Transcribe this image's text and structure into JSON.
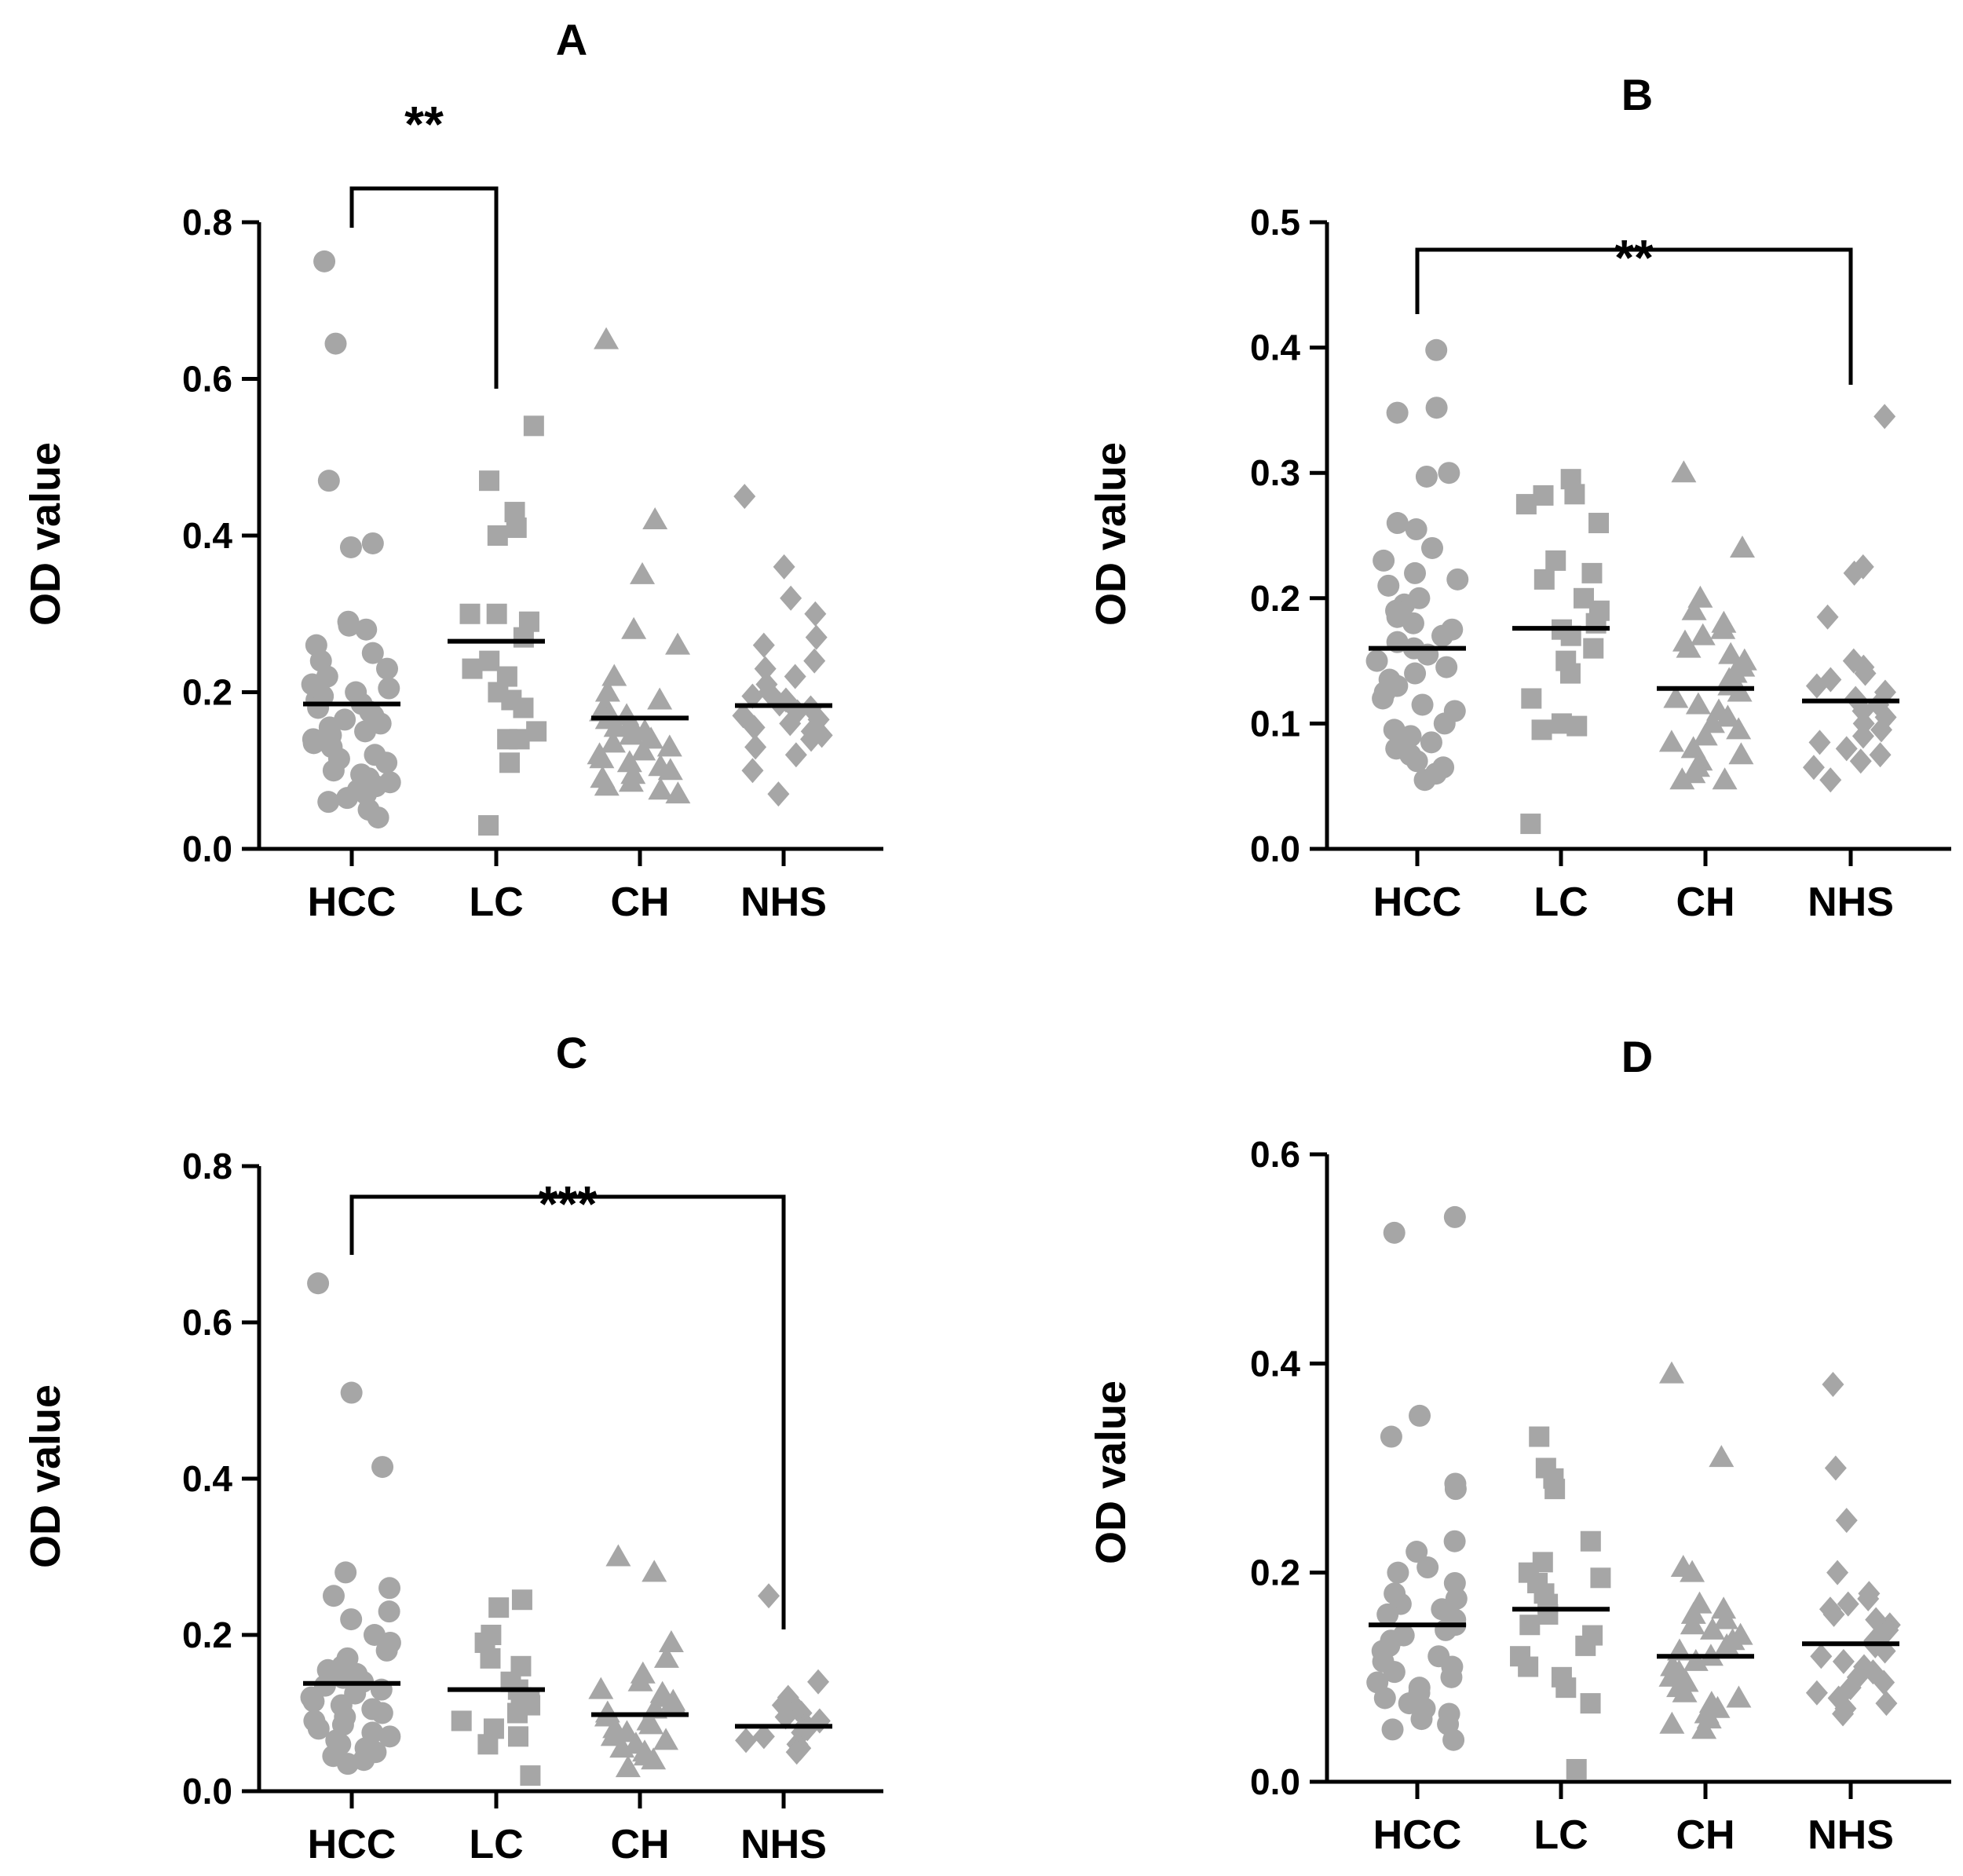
{
  "colors": {
    "points": "#a6a6a6",
    "axis": "#000000",
    "mean": "#000000"
  },
  "chart_data": [
    {
      "id": "A",
      "type": "scatter",
      "subtype": "dot-plot-with-mean",
      "title": "A",
      "ylabel": "OD value",
      "categories": [
        "HCC",
        "LC",
        "CH",
        "NHS"
      ],
      "ylim": [
        0,
        0.8
      ],
      "yticks": [
        0.0,
        0.2,
        0.4,
        0.6,
        0.8
      ],
      "ytick_labels": [
        "0.0",
        "0.2",
        "0.4",
        "0.6",
        "0.8"
      ],
      "series": [
        {
          "name": "HCC",
          "marker": "circle",
          "mean": 0.185,
          "values": [
            0.75,
            0.645,
            0.47,
            0.39,
            0.385,
            0.29,
            0.285,
            0.28,
            0.26,
            0.25,
            0.24,
            0.23,
            0.22,
            0.21,
            0.205,
            0.2,
            0.195,
            0.19,
            0.185,
            0.18,
            0.175,
            0.17,
            0.165,
            0.16,
            0.155,
            0.15,
            0.145,
            0.14,
            0.135,
            0.13,
            0.12,
            0.115,
            0.11,
            0.1,
            0.095,
            0.09,
            0.085,
            0.08,
            0.075,
            0.07,
            0.065,
            0.06,
            0.05,
            0.04
          ]
        },
        {
          "name": "LC",
          "marker": "square",
          "mean": 0.265,
          "values": [
            0.54,
            0.47,
            0.43,
            0.41,
            0.4,
            0.3,
            0.3,
            0.29,
            0.27,
            0.24,
            0.23,
            0.22,
            0.2,
            0.19,
            0.18,
            0.15,
            0.14,
            0.14,
            0.11,
            0.03
          ]
        },
        {
          "name": "CH",
          "marker": "triangle",
          "mean": 0.167,
          "values": [
            0.65,
            0.42,
            0.35,
            0.28,
            0.26,
            0.22,
            0.2,
            0.19,
            0.18,
            0.175,
            0.17,
            0.165,
            0.16,
            0.155,
            0.15,
            0.145,
            0.14,
            0.135,
            0.13,
            0.125,
            0.12,
            0.115,
            0.11,
            0.105,
            0.1,
            0.095,
            0.09,
            0.085,
            0.08,
            0.075,
            0.07
          ]
        },
        {
          "name": "NHS",
          "marker": "diamond",
          "mean": 0.183,
          "values": [
            0.45,
            0.36,
            0.32,
            0.3,
            0.27,
            0.26,
            0.24,
            0.23,
            0.22,
            0.21,
            0.2,
            0.195,
            0.19,
            0.185,
            0.18,
            0.175,
            0.17,
            0.165,
            0.16,
            0.155,
            0.15,
            0.145,
            0.14,
            0.13,
            0.12,
            0.1,
            0.07
          ]
        }
      ],
      "annotations": [
        {
          "from": "HCC",
          "to": "LC",
          "text": "**"
        }
      ]
    },
    {
      "id": "B",
      "type": "scatter",
      "subtype": "dot-plot-with-mean",
      "title": "B",
      "ylabel": "OD value",
      "categories": [
        "HCC",
        "LC",
        "CH",
        "NHS"
      ],
      "ylim": [
        0,
        0.5
      ],
      "yticks": [
        0.0,
        0.1,
        0.2,
        0.3,
        0.4,
        0.5
      ],
      "ytick_labels": [
        "0.0",
        "0.1",
        "0.2",
        "0.3",
        "0.4",
        "0.5"
      ],
      "series": [
        {
          "name": "HCC",
          "marker": "circle",
          "mean": 0.16,
          "values": [
            0.398,
            0.352,
            0.348,
            0.3,
            0.297,
            0.26,
            0.255,
            0.24,
            0.23,
            0.22,
            0.215,
            0.21,
            0.2,
            0.195,
            0.19,
            0.185,
            0.18,
            0.175,
            0.17,
            0.165,
            0.16,
            0.155,
            0.15,
            0.145,
            0.14,
            0.135,
            0.13,
            0.125,
            0.12,
            0.115,
            0.11,
            0.1,
            0.095,
            0.09,
            0.085,
            0.08,
            0.075,
            0.07,
            0.065,
            0.06,
            0.055
          ]
        },
        {
          "name": "LC",
          "marker": "square",
          "mean": 0.176,
          "values": [
            0.295,
            0.283,
            0.282,
            0.275,
            0.26,
            0.23,
            0.22,
            0.215,
            0.2,
            0.19,
            0.18,
            0.175,
            0.17,
            0.16,
            0.15,
            0.14,
            0.12,
            0.1,
            0.098,
            0.095,
            0.02
          ]
        },
        {
          "name": "CH",
          "marker": "triangle",
          "mean": 0.128,
          "values": [
            0.3,
            0.24,
            0.2,
            0.19,
            0.18,
            0.175,
            0.17,
            0.165,
            0.16,
            0.155,
            0.15,
            0.145,
            0.14,
            0.135,
            0.13,
            0.125,
            0.12,
            0.115,
            0.11,
            0.105,
            0.1,
            0.095,
            0.09,
            0.085,
            0.08,
            0.075,
            0.07,
            0.065,
            0.06,
            0.055,
            0.055
          ]
        },
        {
          "name": "NHS",
          "marker": "diamond",
          "mean": 0.118,
          "values": [
            0.345,
            0.225,
            0.22,
            0.185,
            0.15,
            0.145,
            0.14,
            0.135,
            0.13,
            0.125,
            0.12,
            0.115,
            0.11,
            0.105,
            0.1,
            0.095,
            0.09,
            0.085,
            0.08,
            0.075,
            0.07,
            0.065,
            0.055
          ]
        }
      ],
      "annotations": [
        {
          "from": "HCC",
          "to": "NHS",
          "text": "**"
        }
      ]
    },
    {
      "id": "C",
      "type": "scatter",
      "subtype": "dot-plot-with-mean",
      "title": "C",
      "ylabel": "OD value",
      "categories": [
        "HCC",
        "LC",
        "CH",
        "NHS"
      ],
      "ylim": [
        0,
        0.8
      ],
      "yticks": [
        0.0,
        0.2,
        0.4,
        0.6,
        0.8
      ],
      "ytick_labels": [
        "0.0",
        "0.2",
        "0.4",
        "0.6",
        "0.8"
      ],
      "series": [
        {
          "name": "HCC",
          "marker": "circle",
          "mean": 0.138,
          "values": [
            0.65,
            0.51,
            0.415,
            0.28,
            0.26,
            0.25,
            0.23,
            0.22,
            0.2,
            0.19,
            0.18,
            0.17,
            0.16,
            0.155,
            0.15,
            0.145,
            0.14,
            0.135,
            0.13,
            0.125,
            0.12,
            0.115,
            0.11,
            0.105,
            0.1,
            0.095,
            0.09,
            0.085,
            0.08,
            0.075,
            0.07,
            0.065,
            0.06,
            0.055,
            0.05,
            0.045,
            0.04,
            0.035
          ]
        },
        {
          "name": "LC",
          "marker": "square",
          "mean": 0.13,
          "values": [
            0.245,
            0.235,
            0.2,
            0.19,
            0.17,
            0.16,
            0.14,
            0.13,
            0.12,
            0.115,
            0.11,
            0.1,
            0.09,
            0.08,
            0.07,
            0.06,
            0.02
          ]
        },
        {
          "name": "CH",
          "marker": "triangle",
          "mean": 0.098,
          "values": [
            0.3,
            0.28,
            0.19,
            0.17,
            0.15,
            0.14,
            0.13,
            0.125,
            0.12,
            0.115,
            0.11,
            0.105,
            0.1,
            0.095,
            0.09,
            0.085,
            0.08,
            0.075,
            0.07,
            0.065,
            0.06,
            0.055,
            0.05,
            0.045,
            0.04,
            0.03
          ]
        },
        {
          "name": "NHS",
          "marker": "diamond",
          "mean": 0.083,
          "values": [
            0.25,
            0.14,
            0.12,
            0.11,
            0.105,
            0.1,
            0.095,
            0.09,
            0.085,
            0.08,
            0.075,
            0.07,
            0.065,
            0.06,
            0.055,
            0.05
          ]
        }
      ],
      "annotations": [
        {
          "from": "HCC",
          "to": "NHS",
          "text": "***"
        }
      ]
    },
    {
      "id": "D",
      "type": "scatter",
      "subtype": "dot-plot-with-mean",
      "title": "D",
      "ylabel": "OD value",
      "categories": [
        "HCC",
        "LC",
        "CH",
        "NHS"
      ],
      "ylim": [
        0,
        0.6
      ],
      "yticks": [
        0.0,
        0.2,
        0.4,
        0.6
      ],
      "ytick_labels": [
        "0.0",
        "0.2",
        "0.4",
        "0.6"
      ],
      "series": [
        {
          "name": "HCC",
          "marker": "circle",
          "mean": 0.15,
          "values": [
            0.54,
            0.525,
            0.35,
            0.33,
            0.285,
            0.28,
            0.23,
            0.22,
            0.205,
            0.2,
            0.19,
            0.18,
            0.175,
            0.17,
            0.165,
            0.16,
            0.155,
            0.15,
            0.145,
            0.14,
            0.135,
            0.13,
            0.125,
            0.12,
            0.115,
            0.11,
            0.105,
            0.1,
            0.095,
            0.09,
            0.085,
            0.08,
            0.075,
            0.07,
            0.065,
            0.06,
            0.055,
            0.05,
            0.04
          ]
        },
        {
          "name": "LC",
          "marker": "square",
          "mean": 0.165,
          "values": [
            0.33,
            0.3,
            0.29,
            0.28,
            0.23,
            0.21,
            0.2,
            0.195,
            0.19,
            0.18,
            0.17,
            0.16,
            0.15,
            0.14,
            0.13,
            0.12,
            0.11,
            0.1,
            0.09,
            0.075,
            0.012
          ]
        },
        {
          "name": "CH",
          "marker": "triangle",
          "mean": 0.12,
          "values": [
            0.39,
            0.31,
            0.205,
            0.2,
            0.17,
            0.165,
            0.16,
            0.155,
            0.15,
            0.145,
            0.14,
            0.135,
            0.13,
            0.125,
            0.12,
            0.115,
            0.11,
            0.105,
            0.1,
            0.095,
            0.09,
            0.085,
            0.08,
            0.075,
            0.07,
            0.065,
            0.06,
            0.055,
            0.05
          ]
        },
        {
          "name": "NHS",
          "marker": "diamond",
          "mean": 0.132,
          "values": [
            0.38,
            0.3,
            0.25,
            0.2,
            0.18,
            0.175,
            0.17,
            0.165,
            0.16,
            0.155,
            0.15,
            0.145,
            0.14,
            0.135,
            0.13,
            0.125,
            0.12,
            0.115,
            0.11,
            0.105,
            0.1,
            0.095,
            0.09,
            0.085,
            0.08,
            0.075,
            0.07,
            0.065
          ]
        }
      ],
      "annotations": []
    }
  ]
}
